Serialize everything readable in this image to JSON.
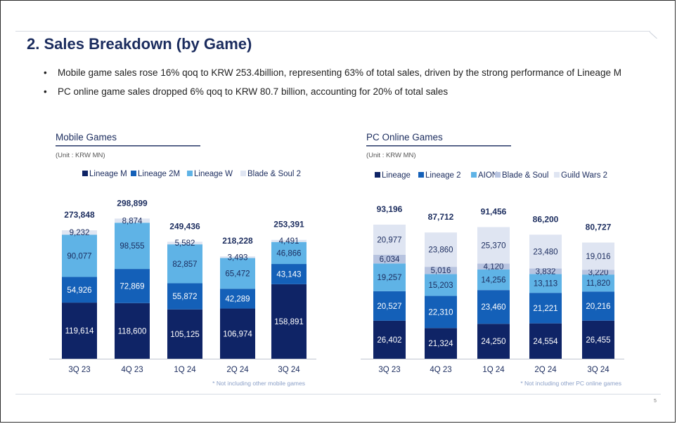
{
  "page": {
    "title": "2. Sales Breakdown (by Game)",
    "bullets": [
      "Mobile game sales rose 16% qoq to KRW 253.4billion, representing 63% of total sales, driven by the strong performance of Lineage M",
      "PC online game sales dropped 6% qoq to KRW 80.7 billion, accounting for 20% of total sales"
    ],
    "page_number": "5"
  },
  "chart_data": [
    {
      "type": "bar",
      "stacked": true,
      "title": "Mobile Games",
      "unit": "(Unit : KRW MN)",
      "footnote": "* Not including other mobile games",
      "categories": [
        "3Q 23",
        "4Q 23",
        "1Q 24",
        "2Q 24",
        "3Q 24"
      ],
      "totals": [
        "273,848",
        "298,899",
        "249,436",
        "218,228",
        "253,391"
      ],
      "series": [
        {
          "name": "Lineage M",
          "color": "#0f2466",
          "values": [
            119614,
            118600,
            105125,
            106974,
            158891
          ],
          "labels": [
            "119,614",
            "118,600",
            "105,125",
            "106,974",
            "158,891"
          ]
        },
        {
          "name": "Lineage 2M",
          "color": "#1460b8",
          "values": [
            54926,
            72869,
            55872,
            42289,
            43143
          ],
          "labels": [
            "54,926",
            "72,869",
            "55,872",
            "42,289",
            "43,143"
          ]
        },
        {
          "name": "Lineage W",
          "color": "#5fb3e6",
          "values": [
            90077,
            98555,
            82857,
            65472,
            46866
          ],
          "labels": [
            "90,077",
            "98,555",
            "82,857",
            "65,472",
            "46,866"
          ]
        },
        {
          "name": "Blade & Soul 2",
          "color": "#dfe5f2",
          "values": [
            9232,
            8874,
            5582,
            3493,
            4491
          ],
          "labels": [
            "9,232",
            "8,874",
            "5,582",
            "3,493",
            "4,491"
          ]
        }
      ]
    },
    {
      "type": "bar",
      "stacked": true,
      "title": "PC Online Games",
      "unit": "(Unit : KRW MN)",
      "footnote": "* Not including other PC online games",
      "categories": [
        "3Q 23",
        "4Q 23",
        "1Q 24",
        "2Q 24",
        "3Q 24"
      ],
      "totals": [
        "93,196",
        "87,712",
        "91,456",
        "86,200",
        "80,727"
      ],
      "series": [
        {
          "name": "Lineage",
          "color": "#0f2466",
          "values": [
            26402,
            21324,
            24250,
            24554,
            26455
          ],
          "labels": [
            "26,402",
            "21,324",
            "24,250",
            "24,554",
            "26,455"
          ]
        },
        {
          "name": "Lineage 2",
          "color": "#1460b8",
          "values": [
            20527,
            22310,
            23460,
            21221,
            20216
          ],
          "labels": [
            "20,527",
            "22,310",
            "23,460",
            "21,221",
            "20,216"
          ]
        },
        {
          "name": "AION",
          "color": "#5fb3e6",
          "values": [
            19257,
            15203,
            14256,
            13113,
            11820
          ],
          "labels": [
            "19,257",
            "15,203",
            "14,256",
            "13,113",
            "11,820"
          ]
        },
        {
          "name": "Blade & Soul",
          "color": "#b8c4e0",
          "values": [
            6034,
            5016,
            4120,
            3832,
            3220
          ],
          "labels": [
            "6,034",
            "5,016",
            "4,120",
            "3,832",
            "3,220"
          ]
        },
        {
          "name": "Guild Wars 2",
          "color": "#dfe5f2",
          "values": [
            20977,
            23860,
            25370,
            23480,
            19016
          ],
          "labels": [
            "20,977",
            "23,860",
            "25,370",
            "23,480",
            "19,016"
          ]
        }
      ]
    }
  ]
}
